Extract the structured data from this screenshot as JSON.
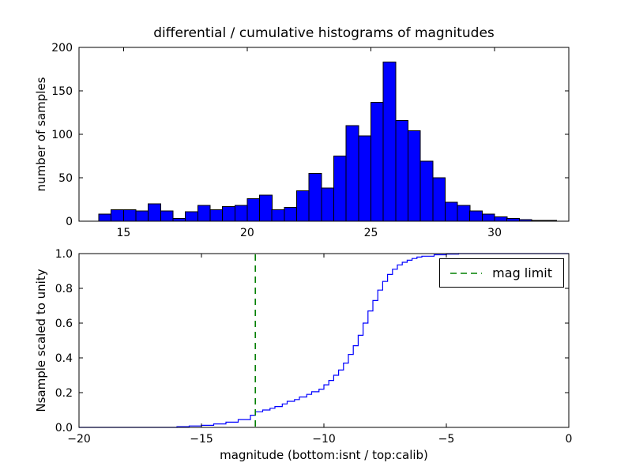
{
  "figure": {
    "background": "#ffffff",
    "frame_color": "#000000"
  },
  "chart_data": [
    {
      "type": "bar",
      "title": "differential / cumulative histograms of magnitudes",
      "xlabel": "",
      "ylabel": "number of samples",
      "bin_start": 14.0,
      "bin_width": 0.5,
      "values": [
        8,
        13,
        13,
        12,
        20,
        12,
        3,
        11,
        18,
        13,
        17,
        18,
        26,
        30,
        13,
        16,
        35,
        55,
        38,
        75,
        110,
        98,
        137,
        183,
        116,
        104,
        69,
        50,
        22,
        18,
        12,
        8,
        5,
        3,
        2,
        1,
        1
      ],
      "xlim": [
        13.2,
        33.0
      ],
      "ylim": [
        0,
        200
      ],
      "xticks": [
        15,
        20,
        25,
        30
      ],
      "xtick_labels": [
        "15",
        "20",
        "25",
        "30"
      ],
      "yticks": [
        0,
        50,
        100,
        150,
        200
      ],
      "ytick_labels": [
        "0",
        "50",
        "100",
        "150",
        "200"
      ],
      "grid": false,
      "bar_color": "#0000ff",
      "bar_edge": "#000000"
    },
    {
      "type": "line",
      "step": true,
      "title": "",
      "xlabel": "magnitude (bottom:isnt / top:calib)",
      "ylabel": "Nsample scaled to unity",
      "x": [
        -20,
        -16.0,
        -15.5,
        -15.0,
        -14.5,
        -14.0,
        -13.5,
        -13.0,
        -12.8,
        -12.5,
        -12.2,
        -12.0,
        -11.7,
        -11.5,
        -11.2,
        -11.0,
        -10.7,
        -10.5,
        -10.2,
        -10.0,
        -9.8,
        -9.6,
        -9.4,
        -9.2,
        -9.0,
        -8.8,
        -8.6,
        -8.4,
        -8.2,
        -8.0,
        -7.8,
        -7.6,
        -7.4,
        -7.2,
        -7.0,
        -6.8,
        -6.6,
        -6.4,
        -6.2,
        -6.0,
        -5.5,
        -5.0,
        -4.5,
        0
      ],
      "y": [
        0,
        0.004,
        0.008,
        0.012,
        0.02,
        0.03,
        0.045,
        0.07,
        0.09,
        0.1,
        0.11,
        0.12,
        0.135,
        0.15,
        0.16,
        0.175,
        0.19,
        0.205,
        0.22,
        0.245,
        0.27,
        0.3,
        0.33,
        0.37,
        0.42,
        0.47,
        0.53,
        0.6,
        0.67,
        0.73,
        0.79,
        0.84,
        0.88,
        0.91,
        0.935,
        0.95,
        0.962,
        0.972,
        0.98,
        0.985,
        0.993,
        0.997,
        1.0,
        1.0
      ],
      "xlim": [
        -20,
        0
      ],
      "ylim": [
        0,
        1.0
      ],
      "xticks": [
        -20,
        -15,
        -10,
        -5,
        0
      ],
      "xtick_labels": [
        "−20",
        "−15",
        "−10",
        "−5",
        "0"
      ],
      "yticks": [
        0.0,
        0.2,
        0.4,
        0.6,
        0.8,
        1.0
      ],
      "ytick_labels": [
        "0.0",
        "0.2",
        "0.4",
        "0.6",
        "0.8",
        "1.0"
      ],
      "grid": false,
      "line_color": "#0000ff",
      "vline": {
        "x": -12.8,
        "color": "#008000",
        "style": "dashed",
        "label": "mag limit"
      },
      "legend": {
        "label": "mag limit",
        "position": "upper right"
      }
    }
  ]
}
